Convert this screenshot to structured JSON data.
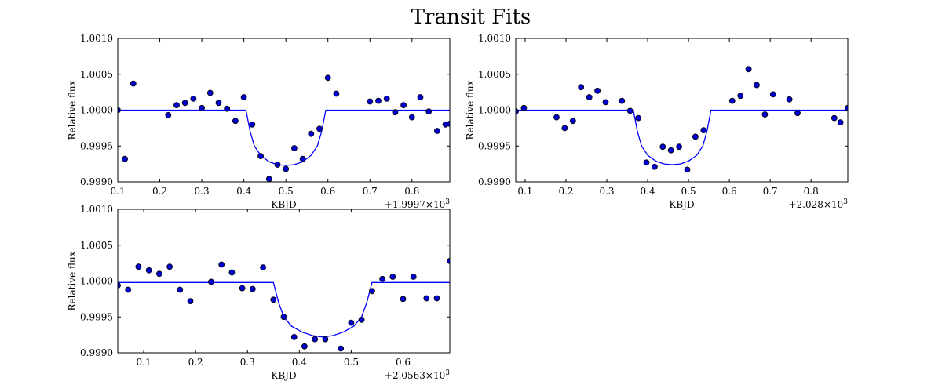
{
  "figure": {
    "title": "Transit Fits"
  },
  "chart_data": [
    {
      "type": "scatter",
      "title": "",
      "xlabel": "KBJD",
      "ylabel": "Relative flux",
      "x_offset_label": "+1.9997×10",
      "x_offset_exp": "3",
      "xlim": [
        0.1,
        0.89
      ],
      "ylim": [
        0.999,
        1.001
      ],
      "xticks": [
        0.1,
        0.2,
        0.3,
        0.4,
        0.5,
        0.6,
        0.7,
        0.8
      ],
      "xtick_labels": [
        "0.1",
        "0.2",
        "0.3",
        "0.4",
        "0.5",
        "0.6",
        "0.7",
        "0.8"
      ],
      "yticks": [
        0.999,
        0.9995,
        1.0,
        1.0005,
        1.001
      ],
      "ytick_labels": [
        "0.9990",
        "0.9995",
        "1.0000",
        "1.0005",
        "1.0010"
      ],
      "grid": false,
      "series": [
        {
          "kind": "points",
          "x": [
            0.1,
            0.117,
            0.137,
            0.22,
            0.24,
            0.26,
            0.28,
            0.3,
            0.32,
            0.34,
            0.36,
            0.38,
            0.4,
            0.42,
            0.44,
            0.46,
            0.48,
            0.5,
            0.52,
            0.54,
            0.56,
            0.58,
            0.6,
            0.62,
            0.7,
            0.72,
            0.74,
            0.76,
            0.78,
            0.8,
            0.82,
            0.84,
            0.86,
            0.88,
            0.89
          ],
          "y": [
            1.0,
            0.99932,
            1.00037,
            0.99993,
            1.00007,
            1.0001,
            1.00016,
            1.00003,
            1.00024,
            1.0001,
            1.00002,
            0.99985,
            1.00018,
            0.9998,
            0.99936,
            0.99904,
            0.99924,
            0.99918,
            0.99947,
            0.99932,
            0.99967,
            0.99974,
            1.00045,
            1.00023,
            1.00012,
            1.00013,
            1.00016,
            0.99997,
            1.00007,
            0.9999,
            1.00018,
            0.99998,
            0.99971,
            0.9998,
            0.99981
          ]
        },
        {
          "kind": "line",
          "x": [
            0.1,
            0.405,
            0.415,
            0.425,
            0.44,
            0.46,
            0.48,
            0.5,
            0.52,
            0.54,
            0.56,
            0.575,
            0.585,
            0.595,
            0.89
          ],
          "y": [
            1.0,
            1.0,
            0.9997,
            0.9995,
            0.99937,
            0.99928,
            0.99924,
            0.99923,
            0.99924,
            0.99928,
            0.99937,
            0.9995,
            0.9997,
            1.0,
            1.0
          ]
        }
      ]
    },
    {
      "type": "scatter",
      "title": "",
      "xlabel": "KBJD",
      "ylabel": "Relative flux",
      "x_offset_label": "+2.028×10",
      "x_offset_exp": "3",
      "xlim": [
        0.077,
        0.89
      ],
      "ylim": [
        0.999,
        1.001
      ],
      "xticks": [
        0.1,
        0.2,
        0.3,
        0.4,
        0.5,
        0.6,
        0.7,
        0.8
      ],
      "xtick_labels": [
        "0.1",
        "0.2",
        "0.3",
        "0.4",
        "0.5",
        "0.6",
        "0.7",
        "0.8"
      ],
      "yticks": [
        0.999,
        0.9995,
        1.0,
        1.0005,
        1.001
      ],
      "ytick_labels": [
        "0.9990",
        "0.9995",
        "1.0000",
        "1.0005",
        "1.0010"
      ],
      "grid": false,
      "series": [
        {
          "kind": "points",
          "x": [
            0.077,
            0.097,
            0.177,
            0.197,
            0.217,
            0.237,
            0.257,
            0.277,
            0.297,
            0.337,
            0.357,
            0.377,
            0.397,
            0.417,
            0.437,
            0.457,
            0.477,
            0.497,
            0.517,
            0.537,
            0.607,
            0.627,
            0.647,
            0.667,
            0.687,
            0.707,
            0.747,
            0.767,
            0.857,
            0.872,
            0.89
          ],
          "y": [
            0.99998,
            1.00003,
            0.9999,
            0.99975,
            0.99985,
            1.00032,
            1.00018,
            1.00027,
            1.00011,
            1.00013,
            0.99999,
            0.99989,
            0.99927,
            0.99921,
            0.99949,
            0.99944,
            0.99949,
            0.99917,
            0.99963,
            0.99972,
            1.00013,
            1.0002,
            1.00057,
            1.00035,
            0.99994,
            1.00022,
            1.00015,
            0.99996,
            0.99989,
            0.99983,
            1.00003
          ]
        },
        {
          "kind": "line",
          "x": [
            0.077,
            0.365,
            0.375,
            0.385,
            0.4,
            0.42,
            0.44,
            0.46,
            0.48,
            0.5,
            0.52,
            0.535,
            0.545,
            0.555,
            0.89
          ],
          "y": [
            1.0,
            1.0,
            0.9997,
            0.9995,
            0.99937,
            0.99929,
            0.99925,
            0.99924,
            0.99925,
            0.99929,
            0.99937,
            0.9995,
            0.9997,
            1.0,
            1.0
          ]
        }
      ]
    },
    {
      "type": "scatter",
      "title": "",
      "xlabel": "KBJD",
      "ylabel": "Relative flux",
      "x_offset_label": "+2.0563×10",
      "x_offset_exp": "3",
      "xlim": [
        0.05,
        0.69
      ],
      "ylim": [
        0.999,
        1.001
      ],
      "xticks": [
        0.1,
        0.2,
        0.3,
        0.4,
        0.5,
        0.6
      ],
      "xtick_labels": [
        "0.1",
        "0.2",
        "0.3",
        "0.4",
        "0.5",
        "0.6"
      ],
      "yticks": [
        0.999,
        0.9995,
        1.0,
        1.0005,
        1.001
      ],
      "ytick_labels": [
        "0.9990",
        "0.9995",
        "1.0000",
        "1.0005",
        "1.0010"
      ],
      "grid": false,
      "series": [
        {
          "kind": "points",
          "x": [
            0.05,
            0.07,
            0.09,
            0.11,
            0.13,
            0.15,
            0.17,
            0.19,
            0.23,
            0.25,
            0.27,
            0.29,
            0.31,
            0.33,
            0.35,
            0.37,
            0.39,
            0.41,
            0.43,
            0.45,
            0.48,
            0.5,
            0.52,
            0.54,
            0.56,
            0.58,
            0.6,
            0.62,
            0.645,
            0.665,
            0.69
          ],
          "y": [
            0.99994,
            0.99988,
            1.0002,
            1.00015,
            1.0001,
            1.0002,
            0.99988,
            0.99972,
            0.99999,
            1.00023,
            1.00012,
            0.9999,
            0.99989,
            1.00019,
            0.99974,
            0.9995,
            0.99922,
            0.99909,
            0.99919,
            0.99919,
            0.99906,
            0.99942,
            0.99946,
            0.99986,
            1.00003,
            1.00006,
            0.99975,
            1.00006,
            0.99976,
            0.99976,
            1.00028
          ]
        },
        {
          "kind": "line",
          "x": [
            0.05,
            0.35,
            0.36,
            0.37,
            0.385,
            0.405,
            0.425,
            0.445,
            0.465,
            0.485,
            0.505,
            0.52,
            0.53,
            0.54,
            0.69
          ],
          "y": [
            0.99998,
            0.99998,
            0.9997,
            0.9995,
            0.99937,
            0.99929,
            0.99924,
            0.99922,
            0.99924,
            0.99929,
            0.99937,
            0.9995,
            0.9997,
            0.99998,
            0.99998
          ]
        }
      ]
    }
  ]
}
